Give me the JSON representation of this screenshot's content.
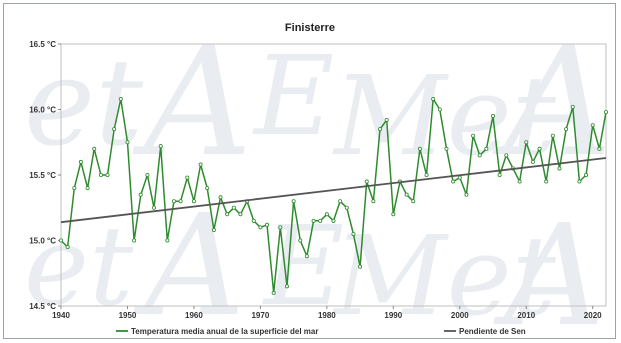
{
  "chart_data": {
    "type": "line",
    "title": "Finisterre",
    "xlabel": "",
    "ylabel": "",
    "xlim": [
      1940,
      2022
    ],
    "ylim": [
      14.5,
      16.5
    ],
    "x_ticks": [
      1940,
      1950,
      1960,
      1970,
      1980,
      1990,
      2000,
      2010,
      2020
    ],
    "x_tick_labels": [
      "1940",
      "1950",
      "1960",
      "1970",
      "1980",
      "1990",
      "2000",
      "2010",
      "2020"
    ],
    "y_ticks": [
      14.5,
      15.0,
      15.5,
      16.0,
      16.5
    ],
    "y_tick_labels": [
      "14.5 °C",
      "15.0 °C",
      "15.5 °C",
      "16.0 °C",
      "16.5 °C"
    ],
    "grid": false,
    "legend_placement": "bottom",
    "series": [
      {
        "name": "Temperatura media anual de la superficie del mar",
        "color": "#2e8b2e",
        "marker": "small-circle",
        "x": [
          1940,
          1941,
          1942,
          1943,
          1944,
          1945,
          1946,
          1947,
          1948,
          1949,
          1950,
          1951,
          1952,
          1953,
          1954,
          1955,
          1956,
          1957,
          1958,
          1959,
          1960,
          1961,
          1962,
          1963,
          1964,
          1965,
          1966,
          1967,
          1968,
          1969,
          1970,
          1971,
          1972,
          1973,
          1974,
          1975,
          1976,
          1977,
          1978,
          1979,
          1980,
          1981,
          1982,
          1983,
          1984,
          1985,
          1986,
          1987,
          1988,
          1989,
          1990,
          1991,
          1992,
          1993,
          1994,
          1995,
          1996,
          1997,
          1998,
          1999,
          2000,
          2001,
          2002,
          2003,
          2004,
          2005,
          2006,
          2007,
          2008,
          2009,
          2010,
          2011,
          2012,
          2013,
          2014,
          2015,
          2016,
          2017,
          2018,
          2019,
          2020,
          2021,
          2022
        ],
        "values": [
          15.0,
          14.95,
          15.4,
          15.6,
          15.4,
          15.7,
          15.5,
          15.5,
          15.85,
          16.08,
          15.75,
          15.0,
          15.35,
          15.5,
          15.25,
          15.72,
          15.0,
          15.3,
          15.3,
          15.48,
          15.3,
          15.58,
          15.4,
          15.08,
          15.33,
          15.2,
          15.25,
          15.2,
          15.3,
          15.15,
          15.1,
          15.12,
          14.6,
          15.1,
          14.65,
          15.3,
          15.0,
          14.88,
          15.15,
          15.15,
          15.2,
          15.15,
          15.3,
          15.25,
          15.05,
          14.8,
          15.45,
          15.3,
          15.85,
          15.92,
          15.2,
          15.45,
          15.35,
          15.3,
          15.7,
          15.5,
          16.08,
          16.0,
          15.7,
          15.45,
          15.48,
          15.35,
          15.8,
          15.65,
          15.7,
          15.95,
          15.5,
          15.65,
          15.55,
          15.45,
          15.75,
          15.6,
          15.7,
          15.45,
          15.8,
          15.55,
          15.85,
          16.02,
          15.45,
          15.5,
          15.88,
          15.7,
          15.98
        ]
      },
      {
        "name": "Pendiente de Sen",
        "color": "#555555",
        "x": [
          1940,
          2022
        ],
        "values": [
          15.14,
          15.63
        ]
      }
    ]
  }
}
